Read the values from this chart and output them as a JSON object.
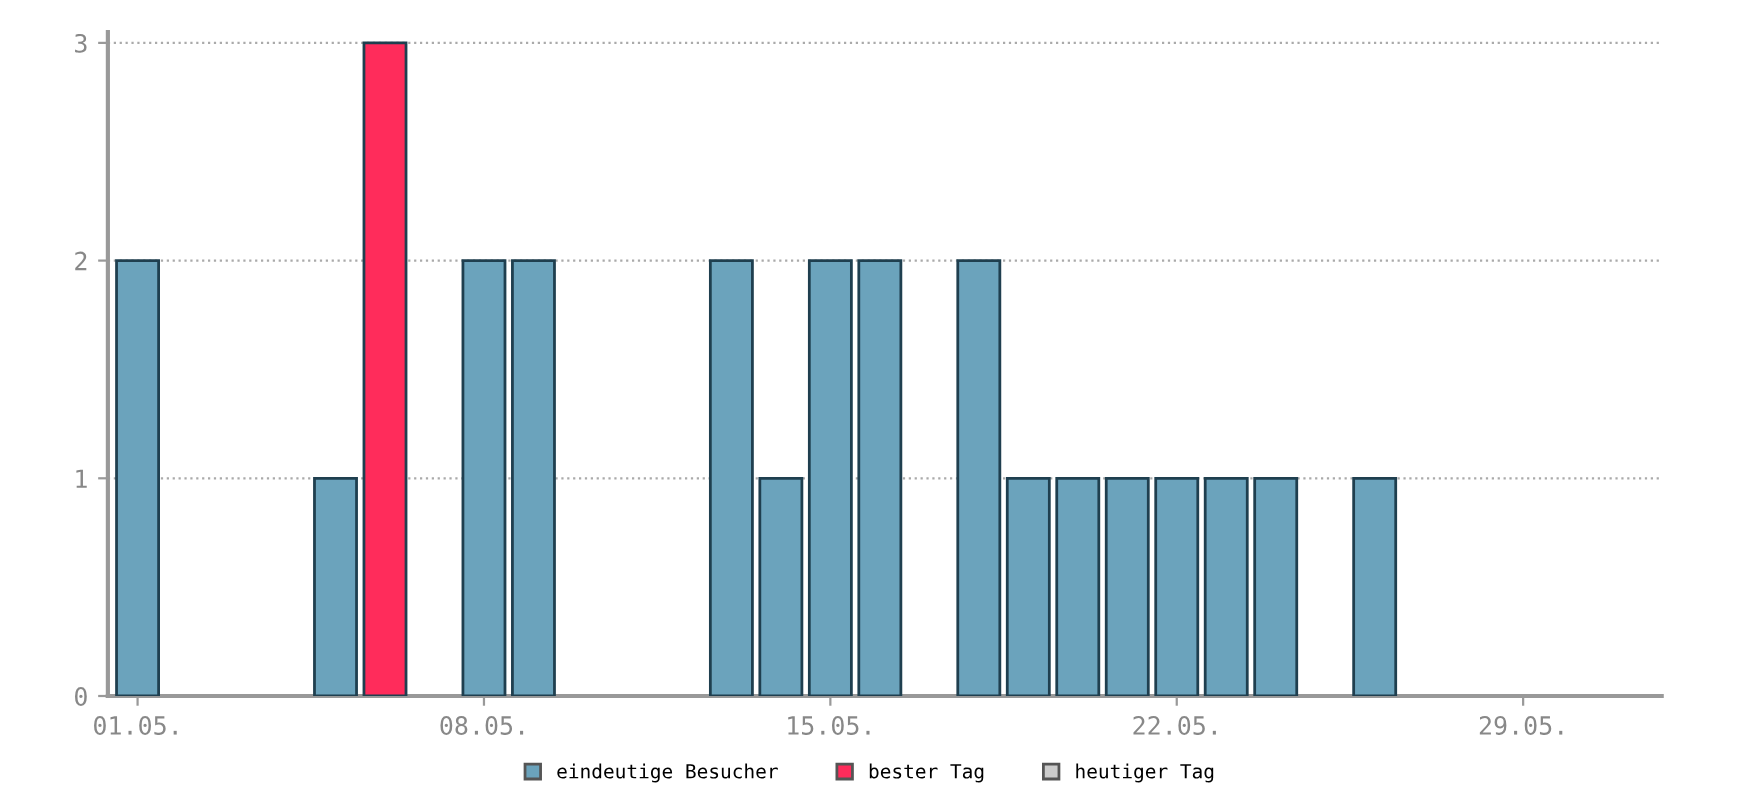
{
  "chart_data": {
    "type": "bar",
    "categories": [
      "01.05.",
      null,
      null,
      null,
      null,
      null,
      null,
      "08.05.",
      null,
      null,
      null,
      null,
      null,
      null,
      "15.05.",
      null,
      null,
      null,
      null,
      null,
      null,
      "22.05.",
      null,
      null,
      null,
      null,
      null,
      null,
      "29.05.",
      null,
      null
    ],
    "series": [
      {
        "name": "eindeutige Besucher",
        "color": "#6ba3bc",
        "values": [
          2,
          null,
          null,
          null,
          1,
          null,
          null,
          2,
          2,
          null,
          null,
          null,
          2,
          1,
          2,
          2,
          null,
          2,
          1,
          1,
          1,
          1,
          1,
          1,
          null,
          1,
          null,
          null,
          null,
          null,
          null
        ]
      },
      {
        "name": "bester Tag",
        "color": "#ff2c5b",
        "values": [
          null,
          null,
          null,
          null,
          null,
          3,
          null,
          null,
          null,
          null,
          null,
          null,
          null,
          null,
          null,
          null,
          null,
          null,
          null,
          null,
          null,
          null,
          null,
          null,
          null,
          null,
          null,
          null,
          null,
          null,
          null
        ]
      },
      {
        "name": "heutiger Tag",
        "color": "#cccccc",
        "values": [
          null,
          null,
          null,
          null,
          null,
          null,
          null,
          null,
          null,
          null,
          null,
          null,
          null,
          null,
          null,
          null,
          null,
          null,
          null,
          null,
          null,
          null,
          null,
          null,
          null,
          null,
          null,
          null,
          null,
          null,
          null
        ]
      }
    ],
    "ylim": [
      0,
      3.05
    ],
    "yticks": [
      0,
      1,
      2,
      3
    ],
    "grid": "y",
    "legend": "bottom"
  }
}
